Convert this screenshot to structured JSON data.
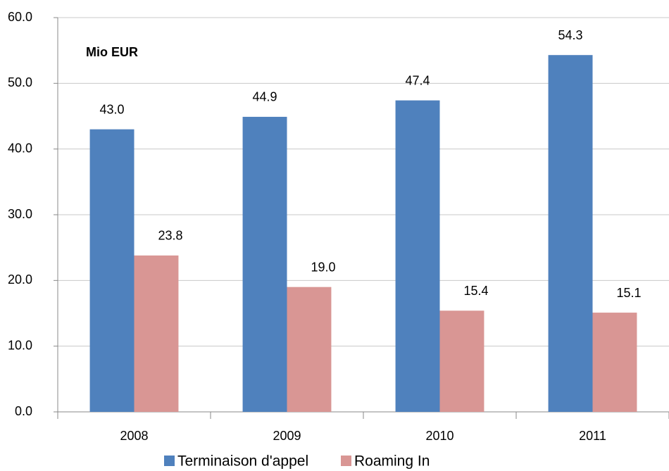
{
  "chart_data": {
    "type": "bar",
    "annotation": "Mio EUR",
    "categories": [
      "2008",
      "2009",
      "2010",
      "2011"
    ],
    "series": [
      {
        "name": "Terminaison d'appel",
        "color": "#4f81bd",
        "values": [
          43.0,
          44.9,
          47.4,
          54.3
        ],
        "value_labels": [
          "43.0",
          "44.9",
          "47.4",
          "54.3"
        ]
      },
      {
        "name": "Roaming In",
        "color": "#d99694",
        "values": [
          23.8,
          19.0,
          15.4,
          15.1
        ],
        "value_labels": [
          "23.8",
          "19.0",
          "15.4",
          "15.1"
        ]
      }
    ],
    "ylim": [
      0,
      60
    ],
    "yticks": [
      {
        "value": 0,
        "label": "0.0"
      },
      {
        "value": 10,
        "label": "10.0"
      },
      {
        "value": 20,
        "label": "20.0"
      },
      {
        "value": 30,
        "label": "30.0"
      },
      {
        "value": 40,
        "label": "40.0"
      },
      {
        "value": 50,
        "label": "50.0"
      },
      {
        "value": 60,
        "label": "60.0"
      }
    ],
    "grid": true,
    "legend": "bottom"
  }
}
